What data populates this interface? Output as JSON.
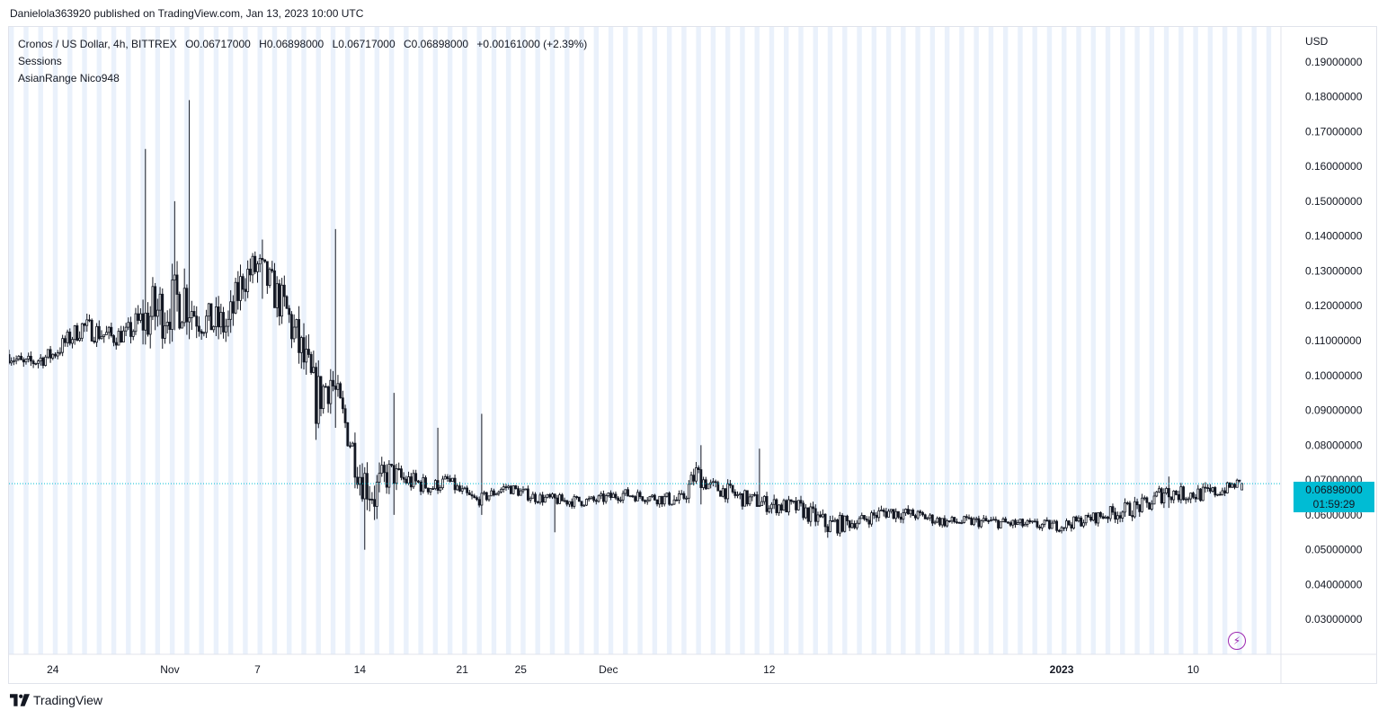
{
  "publish_line": "Danielola363920 published on TradingView.com, Jan 13, 2023 10:00 UTC",
  "legend": {
    "symbol": "Cronos / US Dollar, 4h, BITTREX",
    "open": "O0.06717000",
    "high": "H0.06898000",
    "low": "L0.06717000",
    "close": "C0.06898000",
    "change": "+0.00161000 (+2.39%)",
    "indicator_1": "Sessions",
    "indicator_2": "AsianRange Nico948"
  },
  "price_axis_currency": "USD",
  "last_price_label": "0.06898000",
  "countdown_label": "01:59:29",
  "brand_name": "TradingView",
  "icons": {
    "brand_logo": "tradingview-logo-icon",
    "bolt": "lightning-bolt-icon"
  },
  "colors": {
    "candle_stroke": "#131722",
    "candle_down_fill": "#131722",
    "candle_up_fill": "#ffffff",
    "session_shade": "#e3ecf9",
    "last_price_line": "#00bcd4",
    "badge_bg": "#00bcd4",
    "bolt": "#9c27b0",
    "grid_border": "#e0e3eb"
  },
  "chart_data": {
    "type": "candlestick",
    "timeframe": "4h",
    "ylim": [
      0.02,
      0.2
    ],
    "y_tick_labels": [
      "0.03000000",
      "0.04000000",
      "0.05000000",
      "0.06000000",
      "0.07000000",
      "0.08000000",
      "0.09000000",
      "0.10000000",
      "0.11000000",
      "0.12000000",
      "0.13000000",
      "0.14000000",
      "0.15000000",
      "0.16000000",
      "0.17000000",
      "0.18000000",
      "0.19000000"
    ],
    "x_axis": {
      "domain": [
        "2022-10-21",
        "2023-01-16"
      ],
      "ticks": [
        {
          "date": "2022-10-24",
          "label": "24",
          "bold": false
        },
        {
          "date": "2022-11-01",
          "label": "Nov",
          "bold": false
        },
        {
          "date": "2022-11-07",
          "label": "7",
          "bold": false
        },
        {
          "date": "2022-11-14",
          "label": "14",
          "bold": false
        },
        {
          "date": "2022-11-21",
          "label": "21",
          "bold": false
        },
        {
          "date": "2022-11-25",
          "label": "25",
          "bold": false
        },
        {
          "date": "2022-12-01",
          "label": "Dec",
          "bold": false
        },
        {
          "date": "2022-12-12",
          "label": "12",
          "bold": false
        },
        {
          "date": "2023-01-01",
          "label": "2023",
          "bold": true
        },
        {
          "date": "2023-01-10",
          "label": "10",
          "bold": false
        }
      ]
    },
    "last_price": 0.06898,
    "anchors": [
      {
        "date": "2022-10-21",
        "price": 0.106,
        "vol": 0.003
      },
      {
        "date": "2022-10-22",
        "price": 0.103,
        "vol": 0.003
      },
      {
        "date": "2022-10-24",
        "price": 0.106,
        "vol": 0.003
      },
      {
        "date": "2022-10-26",
        "price": 0.114,
        "vol": 0.004
      },
      {
        "date": "2022-10-28",
        "price": 0.111,
        "vol": 0.004
      },
      {
        "date": "2022-10-29",
        "price": 0.112,
        "vol": 0.003
      },
      {
        "date": "2022-10-31",
        "price": 0.118,
        "vol": 0.012
      },
      {
        "date": "2022-11-01",
        "price": 0.12,
        "vol": 0.01
      },
      {
        "date": "2022-11-02",
        "price": 0.123,
        "vol": 0.012
      },
      {
        "date": "2022-11-03",
        "price": 0.116,
        "vol": 0.006
      },
      {
        "date": "2022-11-05",
        "price": 0.114,
        "vol": 0.008
      },
      {
        "date": "2022-11-06",
        "price": 0.128,
        "vol": 0.007
      },
      {
        "date": "2022-11-07",
        "price": 0.131,
        "vol": 0.007
      },
      {
        "date": "2022-11-08",
        "price": 0.125,
        "vol": 0.007
      },
      {
        "date": "2022-11-09",
        "price": 0.118,
        "vol": 0.008
      },
      {
        "date": "2022-11-10",
        "price": 0.106,
        "vol": 0.01
      },
      {
        "date": "2022-11-11",
        "price": 0.093,
        "vol": 0.01
      },
      {
        "date": "2022-11-12",
        "price": 0.099,
        "vol": 0.008
      },
      {
        "date": "2022-11-13",
        "price": 0.086,
        "vol": 0.006
      },
      {
        "date": "2022-11-14",
        "price": 0.072,
        "vol": 0.008
      },
      {
        "date": "2022-11-15",
        "price": 0.066,
        "vol": 0.009
      },
      {
        "date": "2022-11-16",
        "price": 0.072,
        "vol": 0.005
      },
      {
        "date": "2022-11-17",
        "price": 0.07,
        "vol": 0.004
      },
      {
        "date": "2022-11-19",
        "price": 0.068,
        "vol": 0.003
      },
      {
        "date": "2022-11-20",
        "price": 0.07,
        "vol": 0.002
      },
      {
        "date": "2022-11-21",
        "price": 0.066,
        "vol": 0.003
      },
      {
        "date": "2022-11-22",
        "price": 0.064,
        "vol": 0.002
      },
      {
        "date": "2022-11-24",
        "price": 0.068,
        "vol": 0.002
      },
      {
        "date": "2022-11-26",
        "price": 0.065,
        "vol": 0.002
      },
      {
        "date": "2022-11-28",
        "price": 0.064,
        "vol": 0.002
      },
      {
        "date": "2022-11-30",
        "price": 0.064,
        "vol": 0.002
      },
      {
        "date": "2022-12-02",
        "price": 0.066,
        "vol": 0.002
      },
      {
        "date": "2022-12-04",
        "price": 0.065,
        "vol": 0.002
      },
      {
        "date": "2022-12-06",
        "price": 0.064,
        "vol": 0.003
      },
      {
        "date": "2022-12-07",
        "price": 0.072,
        "vol": 0.004
      },
      {
        "date": "2022-12-08",
        "price": 0.068,
        "vol": 0.003
      },
      {
        "date": "2022-12-09",
        "price": 0.067,
        "vol": 0.003
      },
      {
        "date": "2022-12-10",
        "price": 0.065,
        "vol": 0.003
      },
      {
        "date": "2022-12-12",
        "price": 0.063,
        "vol": 0.003
      },
      {
        "date": "2022-12-14",
        "price": 0.062,
        "vol": 0.003
      },
      {
        "date": "2022-12-16",
        "price": 0.057,
        "vol": 0.004
      },
      {
        "date": "2022-12-18",
        "price": 0.058,
        "vol": 0.002
      },
      {
        "date": "2022-12-20",
        "price": 0.061,
        "vol": 0.003
      },
      {
        "date": "2022-12-22",
        "price": 0.06,
        "vol": 0.002
      },
      {
        "date": "2022-12-24",
        "price": 0.058,
        "vol": 0.002
      },
      {
        "date": "2022-12-27",
        "price": 0.058,
        "vol": 0.002
      },
      {
        "date": "2022-12-30",
        "price": 0.057,
        "vol": 0.002
      },
      {
        "date": "2023-01-01",
        "price": 0.057,
        "vol": 0.002
      },
      {
        "date": "2023-01-03",
        "price": 0.059,
        "vol": 0.002
      },
      {
        "date": "2023-01-05",
        "price": 0.061,
        "vol": 0.003
      },
      {
        "date": "2023-01-07",
        "price": 0.063,
        "vol": 0.003
      },
      {
        "date": "2023-01-08",
        "price": 0.067,
        "vol": 0.004
      },
      {
        "date": "2023-01-09",
        "price": 0.066,
        "vol": 0.003
      },
      {
        "date": "2023-01-11",
        "price": 0.066,
        "vol": 0.003
      },
      {
        "date": "2023-01-12",
        "price": 0.067,
        "vol": 0.002
      },
      {
        "date": "2023-01-13",
        "price": 0.06898,
        "vol": 0.002
      }
    ],
    "spikes": [
      {
        "date": "2022-10-30",
        "high": 0.165,
        "low": 0.112
      },
      {
        "date": "2022-11-01",
        "high": 0.15,
        "low": 0.113
      },
      {
        "date": "2022-11-02",
        "high": 0.179,
        "low": 0.114
      },
      {
        "date": "2022-11-07",
        "high": 0.139,
        "low": 0.122
      },
      {
        "date": "2022-11-12",
        "high": 0.142,
        "low": 0.085
      },
      {
        "date": "2022-11-14",
        "high": 0.071,
        "low": 0.05
      },
      {
        "date": "2022-11-16",
        "high": 0.095,
        "low": 0.06
      },
      {
        "date": "2022-11-19",
        "high": 0.085,
        "low": 0.066
      },
      {
        "date": "2022-11-22",
        "high": 0.089,
        "low": 0.06
      },
      {
        "date": "2022-11-27",
        "high": 0.066,
        "low": 0.055
      },
      {
        "date": "2022-12-07",
        "high": 0.08,
        "low": 0.063
      },
      {
        "date": "2022-12-11",
        "high": 0.079,
        "low": 0.063
      },
      {
        "date": "2023-01-08",
        "high": 0.071,
        "low": 0.062
      }
    ],
    "sessions": {
      "shaded": "Asian session",
      "start_hour_utc": 0,
      "end_hour_utc": 8
    }
  }
}
